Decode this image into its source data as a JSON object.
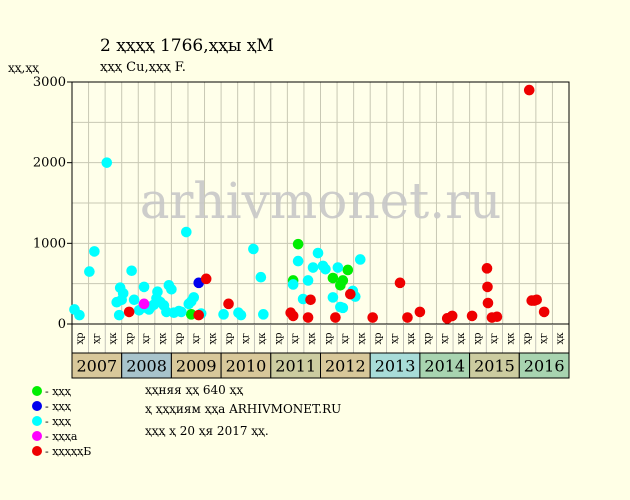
{
  "chart_data": {
    "type": "scatter",
    "title": "2 ҳҳҳҳ 1766,ҳҳы ҳМ",
    "subtitle": "ҳҳҳ Cu,ҳҳҳ F.",
    "ylabel": "ҳҳ,ҳҳ",
    "ylim": [
      0,
      3000
    ],
    "yticks": [
      0,
      1000,
      2000,
      3000
    ],
    "grid": true,
    "watermark": "arhivmonet.ru",
    "years": [
      "2007",
      "2008",
      "2009",
      "2010",
      "2011",
      "2012",
      "2013",
      "2014",
      "2015",
      "2016"
    ],
    "year_colors": [
      "#d8c89a",
      "#a8c4cc",
      "#d8c89a",
      "#d8c89a",
      "#cccca0",
      "#d8c89a",
      "#a8dcd8",
      "#a8d4b0",
      "#cccca0",
      "#a8d4b0"
    ],
    "sub_labels": [
      "ҳр",
      "ҳг",
      "ҳк"
    ],
    "series": [
      {
        "name": "ҳҳҳ",
        "color": "#00ee00",
        "points": [
          [
            2009.4,
            120
          ],
          [
            2011.45,
            540
          ],
          [
            2011.55,
            990
          ],
          [
            2012.25,
            570
          ],
          [
            2012.4,
            480
          ],
          [
            2012.45,
            540
          ],
          [
            2012.55,
            670
          ]
        ]
      },
      {
        "name": "ҳҳҳ",
        "color": "#0000ee",
        "points": [
          [
            2009.55,
            510
          ]
        ]
      },
      {
        "name": "ҳҳҳ",
        "color": "#00ffff",
        "points": [
          [
            2007.05,
            180
          ],
          [
            2007.15,
            110
          ],
          [
            2007.35,
            650
          ],
          [
            2007.45,
            900
          ],
          [
            2007.7,
            2000
          ],
          [
            2007.9,
            270
          ],
          [
            2007.95,
            110
          ],
          [
            2007.97,
            450
          ],
          [
            2008.0,
            300
          ],
          [
            2008.03,
            380
          ],
          [
            2008.2,
            660
          ],
          [
            2008.25,
            300
          ],
          [
            2008.35,
            170
          ],
          [
            2008.45,
            460
          ],
          [
            2008.5,
            200
          ],
          [
            2008.55,
            180
          ],
          [
            2008.6,
            220
          ],
          [
            2008.65,
            240
          ],
          [
            2008.7,
            320
          ],
          [
            2008.72,
            400
          ],
          [
            2008.78,
            270
          ],
          [
            2008.85,
            230
          ],
          [
            2008.9,
            150
          ],
          [
            2008.95,
            480
          ],
          [
            2009.0,
            430
          ],
          [
            2009.05,
            140
          ],
          [
            2009.15,
            160
          ],
          [
            2009.2,
            150
          ],
          [
            2009.3,
            1140
          ],
          [
            2009.35,
            250
          ],
          [
            2009.4,
            280
          ],
          [
            2009.45,
            330
          ],
          [
            2009.6,
            130
          ],
          [
            2010.05,
            120
          ],
          [
            2010.35,
            140
          ],
          [
            2010.4,
            110
          ],
          [
            2010.65,
            930
          ],
          [
            2010.8,
            580
          ],
          [
            2010.85,
            120
          ],
          [
            2011.45,
            490
          ],
          [
            2011.55,
            780
          ],
          [
            2011.65,
            310
          ],
          [
            2011.75,
            540
          ],
          [
            2011.85,
            700
          ],
          [
            2011.95,
            880
          ],
          [
            2012.05,
            720
          ],
          [
            2012.1,
            680
          ],
          [
            2012.25,
            330
          ],
          [
            2012.35,
            700
          ],
          [
            2012.4,
            210
          ],
          [
            2012.45,
            200
          ],
          [
            2012.65,
            410
          ],
          [
            2012.7,
            340
          ],
          [
            2012.8,
            800
          ]
        ]
      },
      {
        "name": "ҳҳҳа",
        "color": "#ff00ff",
        "points": [
          [
            2008.45,
            250
          ]
        ]
      },
      {
        "name": "ҳҳҳҳҳБ",
        "color": "#ee0000",
        "points": [
          [
            2008.15,
            150
          ],
          [
            2009.55,
            110
          ],
          [
            2009.7,
            560
          ],
          [
            2010.15,
            250
          ],
          [
            2011.4,
            140
          ],
          [
            2011.45,
            100
          ],
          [
            2011.75,
            80
          ],
          [
            2011.8,
            300
          ],
          [
            2012.3,
            80
          ],
          [
            2012.6,
            370
          ],
          [
            2013.05,
            80
          ],
          [
            2013.6,
            510
          ],
          [
            2013.75,
            80
          ],
          [
            2014.0,
            150
          ],
          [
            2014.55,
            70
          ],
          [
            2014.65,
            100
          ],
          [
            2015.05,
            100
          ],
          [
            2015.35,
            690
          ],
          [
            2015.36,
            460
          ],
          [
            2015.37,
            260
          ],
          [
            2015.45,
            80
          ],
          [
            2015.55,
            90
          ],
          [
            2016.2,
            2900
          ],
          [
            2016.25,
            290
          ],
          [
            2016.3,
            290
          ],
          [
            2016.35,
            300
          ],
          [
            2016.5,
            150
          ]
        ]
      }
    ]
  },
  "footer": {
    "line1": "ҳҳняя ҳҳ 640 ҳҳ",
    "line2": "ҳ ҳҳҳиям ҳҳа ARHIVMONET.RU",
    "line3": "ҳҳҳ ҳ 20 ҳя 2017 ҳҳ."
  }
}
